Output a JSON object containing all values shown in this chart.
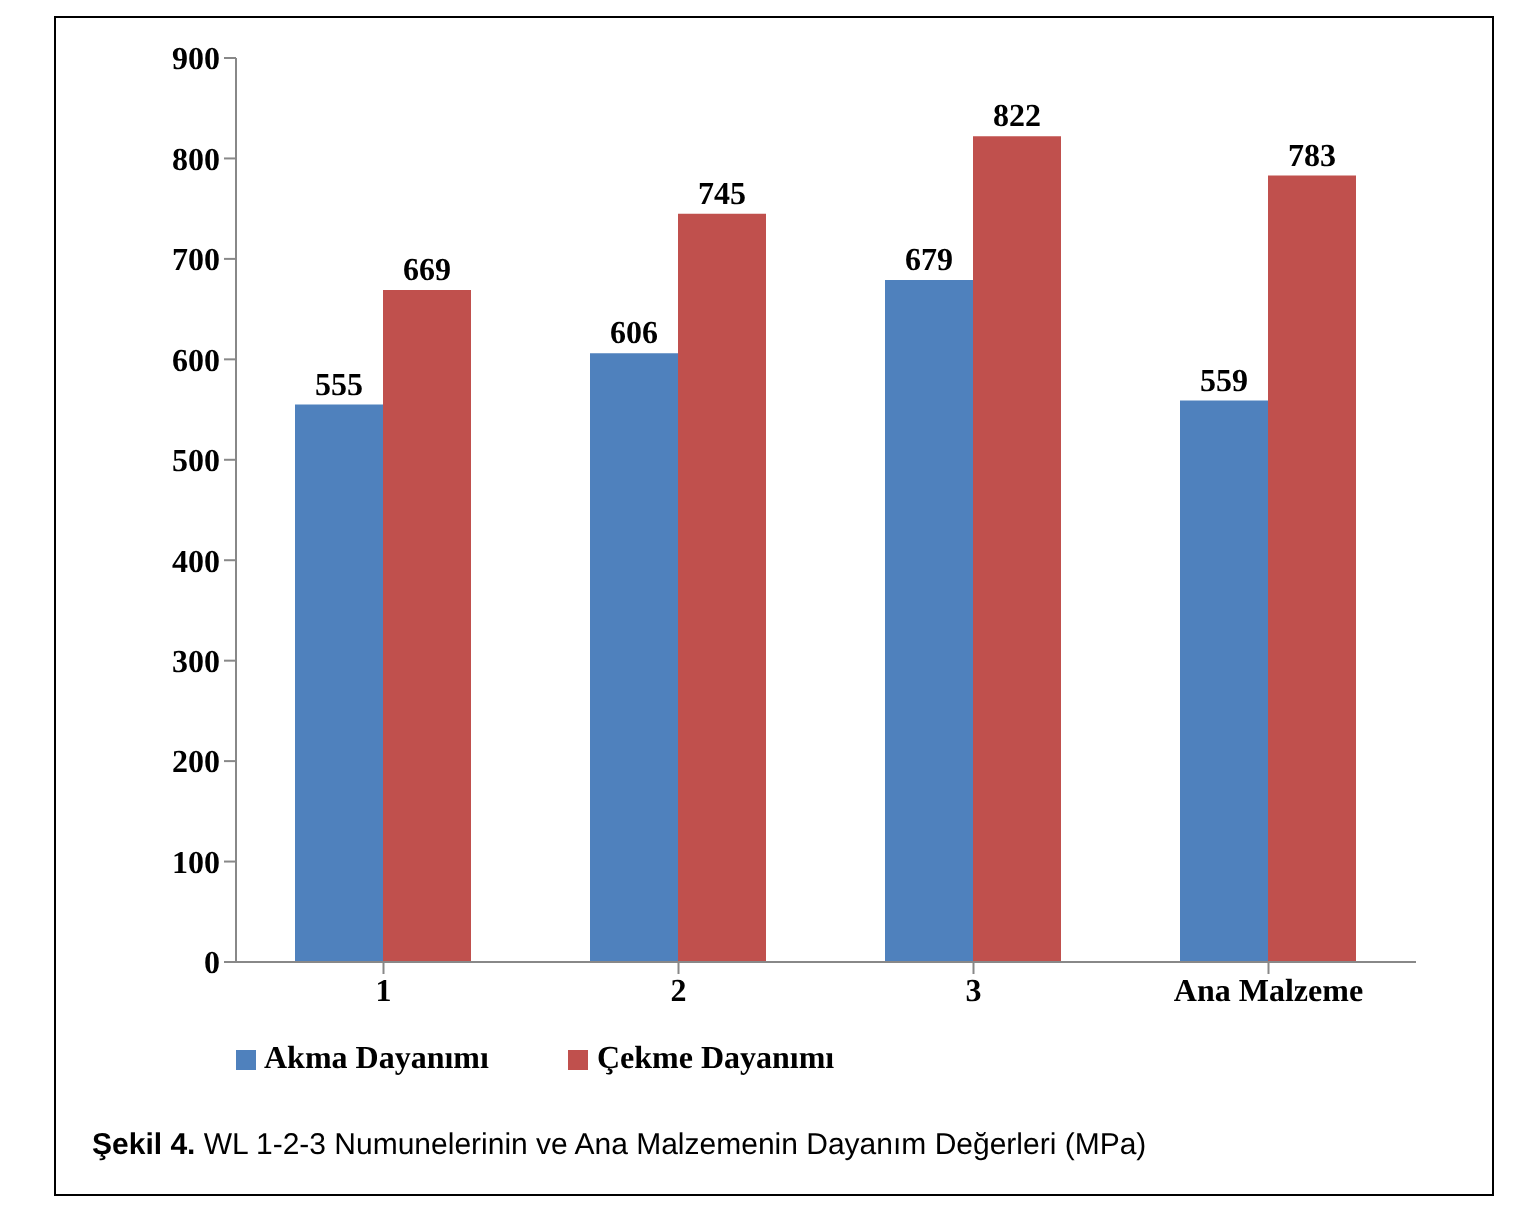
{
  "chart_data": {
    "type": "bar",
    "categories": [
      "1",
      "2",
      "3",
      "Ana Malzeme"
    ],
    "series": [
      {
        "name": "Akma Dayanımı",
        "color": "#4f81bd",
        "values": [
          555,
          606,
          679,
          559
        ]
      },
      {
        "name": "Çekme Dayanımı",
        "color": "#c0504d",
        "values": [
          669,
          745,
          822,
          783
        ]
      }
    ],
    "ylim": [
      0,
      900
    ],
    "yticks": [
      0,
      100,
      200,
      300,
      400,
      500,
      600,
      700,
      800,
      900
    ],
    "grid": false,
    "legend": "bottom left",
    "data_labels": true,
    "annotations": [
      "Şekil 4. WL 1-2-3 Numunelerinin ve Ana Malzemenin Dayanım Değerleri (MPa)"
    ]
  }
}
